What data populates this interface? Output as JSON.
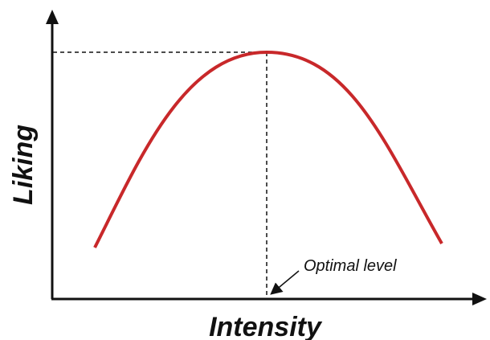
{
  "x_label": "Intensity",
  "y_label": "Liking",
  "annotation": "Optimal level"
}
